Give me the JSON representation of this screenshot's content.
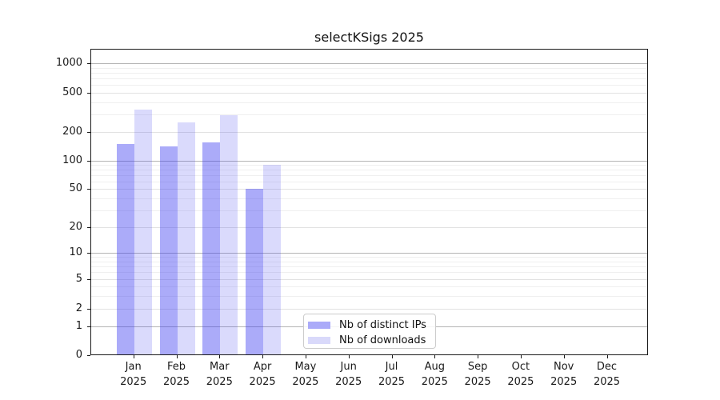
{
  "title": "selectKSigs 2025",
  "legend": {
    "items": [
      {
        "label": "Nb of distinct IPs",
        "color": "#ababf9"
      },
      {
        "label": "Nb of downloads",
        "color": "#d9d9fa"
      }
    ]
  },
  "axes": {
    "y_tick_labels": [
      "0",
      "1",
      "2",
      "5",
      "10",
      "20",
      "50",
      "100",
      "200",
      "500",
      "1000"
    ],
    "x_months": [
      "Jan",
      "Feb",
      "Mar",
      "Apr",
      "May",
      "Jun",
      "Jul",
      "Aug",
      "Sep",
      "Oct",
      "Nov",
      "Dec"
    ],
    "x_year": "2025"
  },
  "chart_data": {
    "type": "bar",
    "title": "selectKSigs 2025",
    "categories": [
      "Jan 2025",
      "Feb 2025",
      "Mar 2025",
      "Apr 2025",
      "May 2025",
      "Jun 2025",
      "Jul 2025",
      "Aug 2025",
      "Sep 2025",
      "Oct 2025",
      "Nov 2025",
      "Dec 2025"
    ],
    "series": [
      {
        "name": "Nb of distinct IPs",
        "color": "#ababf9",
        "fill": "rgba(60,60,240,0.43)",
        "values": [
          150,
          140,
          155,
          50,
          0,
          0,
          0,
          0,
          0,
          0,
          0,
          0
        ]
      },
      {
        "name": "Nb of downloads",
        "color": "#d9d9fa",
        "fill": "rgba(60,60,240,0.19)",
        "values": [
          335,
          250,
          295,
          90,
          0,
          0,
          0,
          0,
          0,
          0,
          0,
          0
        ]
      }
    ],
    "yscale": "symlog",
    "yticks": [
      0,
      1,
      2,
      5,
      10,
      20,
      50,
      100,
      200,
      500,
      1000
    ],
    "ylim": [
      0,
      1200
    ],
    "grid": "both",
    "legend_position": "lower center (inside axes)",
    "grid_colors": {
      "power10": "#b5b5b5",
      "labeled": "#e2e2e2",
      "minor": "#efefef"
    }
  }
}
